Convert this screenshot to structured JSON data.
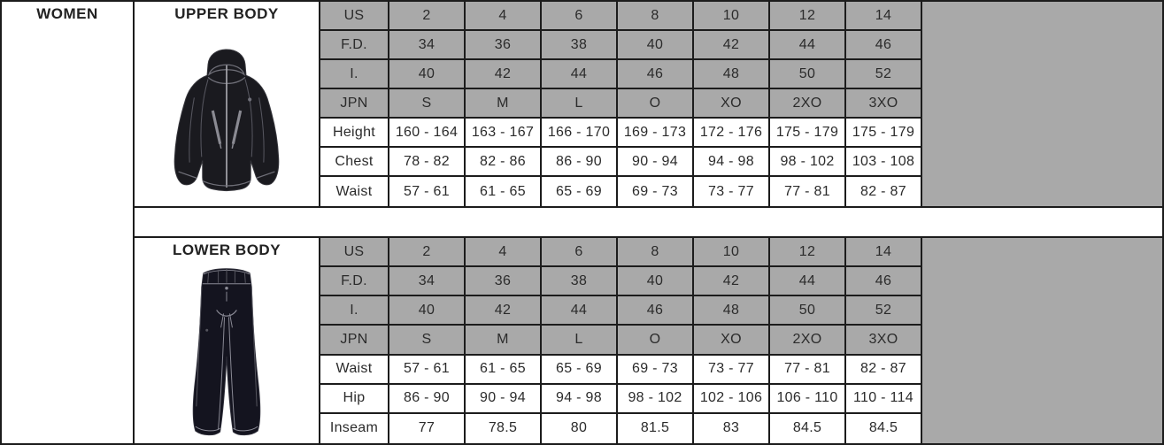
{
  "page": {
    "women_label": "WOMEN"
  },
  "colors": {
    "header_gray": "#a9a9a9",
    "border_black": "#1c1c1c",
    "text": "#2b2b2b"
  },
  "sections": [
    {
      "title": "UPPER BODY",
      "image": "jacket-illustration",
      "rows": [
        {
          "label": "US",
          "header": true,
          "values": [
            "2",
            "4",
            "6",
            "8",
            "10",
            "12",
            "14"
          ]
        },
        {
          "label": "F.D.",
          "header": true,
          "values": [
            "34",
            "36",
            "38",
            "40",
            "42",
            "44",
            "46"
          ]
        },
        {
          "label": "I.",
          "header": true,
          "values": [
            "40",
            "42",
            "44",
            "46",
            "48",
            "50",
            "52"
          ]
        },
        {
          "label": "JPN",
          "header": true,
          "values": [
            "S",
            "M",
            "L",
            "O",
            "XO",
            "2XO",
            "3XO"
          ]
        },
        {
          "label": "Height",
          "header": false,
          "values": [
            "160 - 164",
            "163 - 167",
            "166 - 170",
            "169 - 173",
            "172 - 176",
            "175 - 179",
            "175 - 179"
          ]
        },
        {
          "label": "Chest",
          "header": false,
          "values": [
            "78 - 82",
            "82 - 86",
            "86 - 90",
            "90 - 94",
            "94 - 98",
            "98 - 102",
            "103 - 108"
          ]
        },
        {
          "label": "Waist",
          "header": false,
          "values": [
            "57 - 61",
            "61 - 65",
            "65 - 69",
            "69 - 73",
            "73 - 77",
            "77 - 81",
            "82 - 87"
          ]
        }
      ]
    },
    {
      "title": "LOWER BODY",
      "image": "pants-illustration",
      "rows": [
        {
          "label": "US",
          "header": true,
          "values": [
            "2",
            "4",
            "6",
            "8",
            "10",
            "12",
            "14"
          ]
        },
        {
          "label": "F.D.",
          "header": true,
          "values": [
            "34",
            "36",
            "38",
            "40",
            "42",
            "44",
            "46"
          ]
        },
        {
          "label": "I.",
          "header": true,
          "values": [
            "40",
            "42",
            "44",
            "46",
            "48",
            "50",
            "52"
          ]
        },
        {
          "label": "JPN",
          "header": true,
          "values": [
            "S",
            "M",
            "L",
            "O",
            "XO",
            "2XO",
            "3XO"
          ]
        },
        {
          "label": "Waist",
          "header": false,
          "values": [
            "57 - 61",
            "61 - 65",
            "65 - 69",
            "69 - 73",
            "73 - 77",
            "77 - 81",
            "82 - 87"
          ]
        },
        {
          "label": "Hip",
          "header": false,
          "values": [
            "86 - 90",
            "90 - 94",
            "94 - 98",
            "98 - 102",
            "102 - 106",
            "106 - 110",
            "110 - 114"
          ]
        },
        {
          "label": "Inseam",
          "header": false,
          "values": [
            "77",
            "78.5",
            "80",
            "81.5",
            "83",
            "84.5",
            "84.5"
          ]
        }
      ]
    }
  ]
}
